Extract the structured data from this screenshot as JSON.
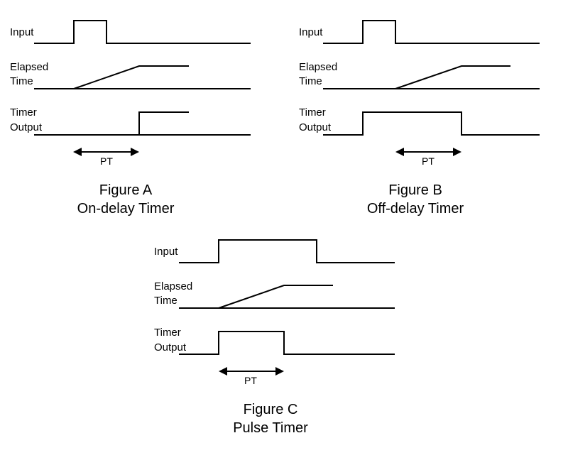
{
  "figures": {
    "a": {
      "input_label": "Input",
      "elapsed_label_1": "Elapsed",
      "elapsed_label_2": "Time",
      "output_label_1": "Timer",
      "output_label_2": "Output",
      "pt_label": "PT",
      "caption_1": "Figure A",
      "caption_2": "On-delay Timer"
    },
    "b": {
      "input_label": "Input",
      "elapsed_label_1": "Elapsed",
      "elapsed_label_2": "Time",
      "output_label_1": "Timer",
      "output_label_2": "Output",
      "pt_label": "PT",
      "caption_1": "Figure B",
      "caption_2": "Off-delay Timer"
    },
    "c": {
      "input_label": "Input",
      "elapsed_label_1": "Elapsed",
      "elapsed_label_2": "Time",
      "output_label_1": "Timer",
      "output_label_2": "Output",
      "pt_label": "PT",
      "caption_1": "Figure C",
      "caption_2": "Pulse Timer"
    }
  },
  "colors": {
    "line": "#000000",
    "background": "#ffffff"
  }
}
